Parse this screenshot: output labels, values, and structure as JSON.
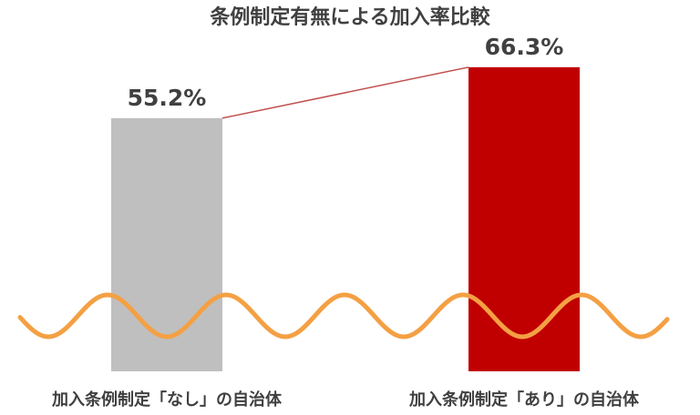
{
  "chart_data": {
    "type": "bar",
    "title": "条例制定有無による加入率比較",
    "categories": [
      "加入条例制定「なし」の自治体",
      "加入条例制定「あり」の自治体"
    ],
    "values": [
      55.2,
      66.3
    ],
    "value_labels": [
      "55.2%",
      "66.3%"
    ],
    "ylim": [
      0,
      75
    ],
    "colors": [
      "#bfbfbf",
      "#c00000"
    ],
    "connector_color": "#c0504d",
    "decoration_color": "#f4a044",
    "grid": false,
    "legend": "none"
  }
}
